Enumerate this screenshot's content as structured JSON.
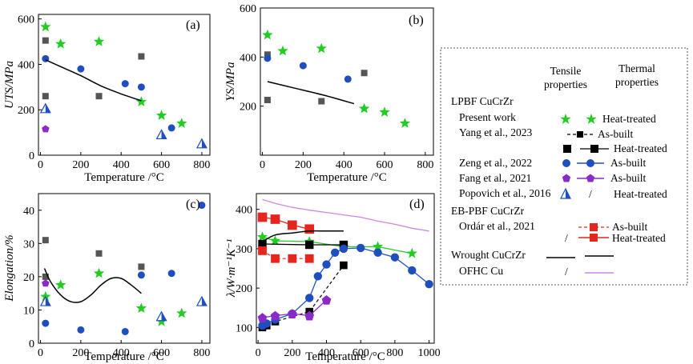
{
  "chart_data": [
    {
      "type": "scatter",
      "panel_label": "(a)",
      "xlabel": "Temperature /°C",
      "ylabel": "UTS/MPa",
      "xlim": [
        -10,
        840
      ],
      "ylim": [
        0,
        620
      ],
      "xticks": [
        0,
        200,
        400,
        600,
        800
      ],
      "yticks": [
        0,
        200,
        400,
        600
      ],
      "series": [
        {
          "key": "present_ht",
          "x": [
            25,
            100,
            290,
            500,
            600,
            700
          ],
          "y": [
            565,
            490,
            500,
            235,
            175,
            140
          ]
        },
        {
          "key": "yang_ab",
          "x": [
            25,
            25
          ],
          "y": [
            505,
            260
          ]
        },
        {
          "key": "yang_ht",
          "x": [
            290,
            500
          ],
          "y": [
            260,
            435
          ]
        },
        {
          "key": "zeng_ab",
          "x": [
            25,
            200,
            420,
            500,
            650
          ],
          "y": [
            425,
            380,
            315,
            300,
            120
          ]
        },
        {
          "key": "fang_ab",
          "x": [
            25
          ],
          "y": [
            115
          ]
        },
        {
          "key": "popovich_ht",
          "x": [
            25,
            600,
            800
          ],
          "y": [
            205,
            90,
            50
          ]
        },
        {
          "key": "wrought_tensile",
          "x": [
            25,
            100,
            200,
            300,
            400,
            500
          ],
          "y": [
            420,
            390,
            350,
            305,
            270,
            240
          ]
        }
      ]
    },
    {
      "type": "scatter",
      "panel_label": "(b)",
      "xlabel": "Temperature /°C",
      "ylabel": "YS/MPa",
      "xlim": [
        -10,
        840
      ],
      "ylim": [
        0,
        600
      ],
      "xticks": [
        0,
        200,
        400,
        600,
        800
      ],
      "yticks": [
        200,
        400,
        600
      ],
      "series": [
        {
          "key": "present_ht",
          "x": [
            25,
            100,
            290,
            500,
            600,
            700
          ],
          "y": [
            490,
            425,
            435,
            190,
            175,
            130
          ]
        },
        {
          "key": "yang_ab",
          "x": [
            25,
            25
          ],
          "y": [
            410,
            225
          ]
        },
        {
          "key": "yang_ht",
          "x": [
            290,
            500
          ],
          "y": [
            220,
            335
          ]
        },
        {
          "key": "zeng_ab",
          "x": [
            25,
            200,
            420
          ],
          "y": [
            395,
            365,
            310
          ]
        },
        {
          "key": "wrought_tensile",
          "x": [
            25,
            150,
            300,
            450
          ],
          "y": [
            300,
            275,
            245,
            210
          ]
        }
      ]
    },
    {
      "type": "scatter",
      "panel_label": "(c)",
      "xlabel": "Temperature /°C",
      "ylabel": "Elongation/%",
      "xlim": [
        -10,
        840
      ],
      "ylim": [
        0,
        45
      ],
      "xticks": [
        0,
        200,
        400,
        600,
        800
      ],
      "yticks": [
        0,
        10,
        20,
        30,
        40
      ],
      "series": [
        {
          "key": "present_ht",
          "x": [
            25,
            100,
            290,
            500,
            600,
            700
          ],
          "y": [
            14,
            17.5,
            21,
            10.5,
            6.5,
            9
          ]
        },
        {
          "key": "yang_ab",
          "x": [
            25,
            25
          ],
          "y": [
            31,
            20
          ]
        },
        {
          "key": "yang_ht",
          "x": [
            290,
            500
          ],
          "y": [
            27,
            23
          ]
        },
        {
          "key": "zeng_ab",
          "x": [
            25,
            200,
            420,
            500,
            650,
            800
          ],
          "y": [
            6,
            4,
            3.5,
            20.5,
            21,
            41.5
          ]
        },
        {
          "key": "fang_ab",
          "x": [
            25
          ],
          "y": [
            18
          ]
        },
        {
          "key": "popovich_ht",
          "x": [
            25,
            600,
            800
          ],
          "y": [
            12.5,
            8,
            12.5
          ]
        },
        {
          "key": "wrought_tensile",
          "x": [
            20,
            50,
            100,
            150,
            200,
            250,
            300,
            350,
            400,
            450,
            500
          ],
          "y": [
            22.5,
            18.5,
            14.5,
            12.5,
            12.5,
            14.5,
            17.5,
            19.5,
            19.5,
            17.5,
            15
          ]
        }
      ]
    },
    {
      "type": "line",
      "panel_label": "(d)",
      "xlabel": "Temperature /°C",
      "ylabel": "λ/W·m⁻¹K⁻¹",
      "xlim": [
        -10,
        1030
      ],
      "ylim": [
        60,
        440
      ],
      "xticks": [
        0,
        200,
        400,
        600,
        800,
        1000
      ],
      "yticks": [
        100,
        200,
        300,
        400
      ],
      "series": [
        {
          "key": "present_ht",
          "x": [
            25,
            100,
            300,
            500,
            700,
            900
          ],
          "y": [
            330,
            320,
            318,
            305,
            305,
            288
          ]
        },
        {
          "key": "yang_ab",
          "x": [
            25,
            50,
            100,
            300,
            500
          ],
          "y": [
            100,
            105,
            115,
            140,
            258
          ]
        },
        {
          "key": "yang_ht",
          "x": [
            25,
            300,
            500
          ],
          "y": [
            312,
            310,
            310
          ]
        },
        {
          "key": "zeng_ab",
          "x": [
            25,
            50,
            100,
            200,
            300,
            350,
            400,
            450,
            500,
            600,
            700,
            800,
            900,
            1000
          ],
          "y": [
            105,
            110,
            120,
            135,
            175,
            230,
            260,
            290,
            300,
            302,
            290,
            278,
            245,
            210
          ]
        },
        {
          "key": "fang_ab",
          "x": [
            25,
            100,
            200,
            300,
            400
          ],
          "y": [
            125,
            130,
            135,
            130,
            170
          ]
        },
        {
          "key": "ordar_ab",
          "x": [
            25,
            100,
            200,
            300
          ],
          "y": [
            295,
            275,
            275,
            275
          ]
        },
        {
          "key": "ordar_ht",
          "x": [
            25,
            100,
            200,
            300
          ],
          "y": [
            380,
            375,
            360,
            350
          ]
        },
        {
          "key": "wrought_thermal",
          "x": [
            25,
            100,
            200,
            300,
            400,
            500
          ],
          "y": [
            318,
            335,
            340,
            345,
            345,
            345
          ]
        },
        {
          "key": "ofhc_thermal",
          "x": [
            25,
            100,
            200,
            300,
            400,
            500,
            600,
            700,
            800,
            900,
            1000
          ],
          "y": [
            425,
            415,
            405,
            398,
            392,
            386,
            380,
            370,
            362,
            352,
            345
          ]
        }
      ]
    }
  ],
  "legend": {
    "col_tensile": "Tensile\nproperties",
    "col_thermal": "Thermal\nproperties",
    "group_lpbf": "LPBF CuCrZr",
    "group_ebpbf": "EB-PBF CuCrZr",
    "group_wrought": "Wrought CuCrZr",
    "rows": [
      {
        "source": "Present work",
        "state": "Heat-treated"
      },
      {
        "source": "Yang et al., 2023",
        "state": "As-built"
      },
      {
        "source": "",
        "state": "Heat-treated"
      },
      {
        "source": "Zeng et al., 2022",
        "state": "As-built"
      },
      {
        "source": "Fang et al., 2021",
        "state": "As-built"
      },
      {
        "source": "Popovich et al., 2016",
        "state": "Heat-treated"
      },
      {
        "source": "Ordár et al., 2021",
        "state": "As-built"
      },
      {
        "source": "",
        "state": "Heat-treated"
      },
      {
        "source": "OFHC Cu",
        "state": ""
      }
    ],
    "slash": "/"
  },
  "colors": {
    "green": "#22cc22",
    "grey": "#555555",
    "black": "#000000",
    "blue": "#1f4fbf",
    "purple": "#8a2bc8",
    "red": "#e5261f",
    "violet": "#c98ae0"
  }
}
